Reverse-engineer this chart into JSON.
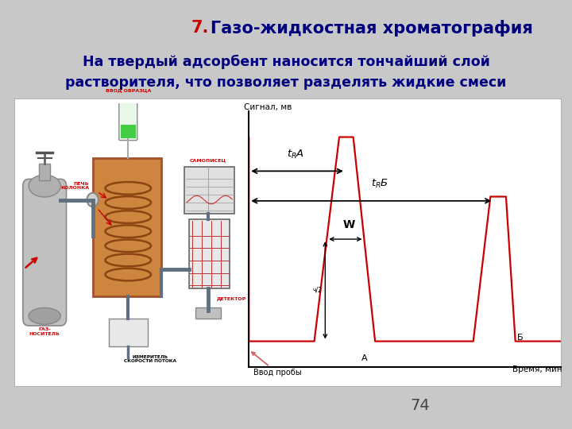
{
  "title_7_color": "#cc0000",
  "title_text_color": "#00007f",
  "subtitle_color": "#00007f",
  "page_number": "74",
  "bg_color": "#c8c8c8",
  "chrom_line_color": "#cc0000",
  "axis_label_signal": "Сигнал, мв",
  "axis_label_time": "Время, мин",
  "label_vvod": "Ввод пробы",
  "label_W": "W",
  "label_A_peak": "А",
  "label_B_peak": "Б",
  "red_label": "#cc0000",
  "oven_color": "#cd853f",
  "oven_edge": "#a0522d",
  "cyl_color": "#b0b0b0",
  "pipe_color": "#607080",
  "coil_color": "#8B4513",
  "det_color": "#90b8b8",
  "grid_color": "#cc4444",
  "slide_white": "#ffffff",
  "diag_border": "#999999"
}
